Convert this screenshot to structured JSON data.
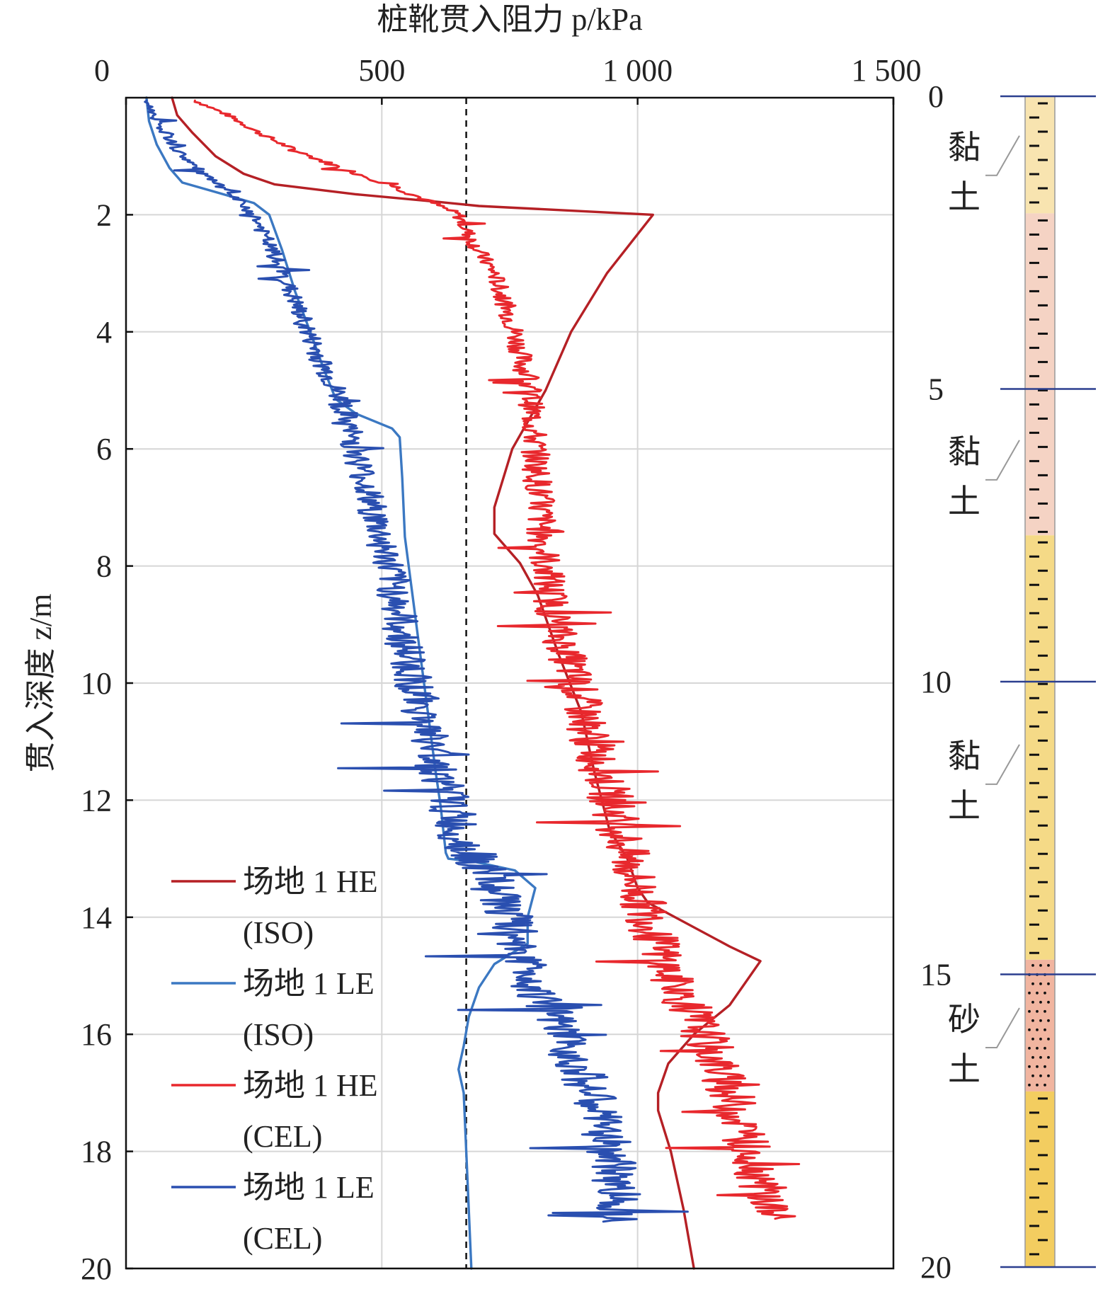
{
  "chart_data": {
    "type": "line",
    "xlabel": "桩靴贯入阻力 p/kPa",
    "ylabel": "贯入深度 z/m",
    "xlim": [
      0,
      1500
    ],
    "ylim": [
      0,
      20
    ],
    "x_axis_position": "top",
    "y_inverted": true,
    "grid": true,
    "x_ticks": [
      {
        "v": 0,
        "label": "0"
      },
      {
        "v": 500,
        "label": "500"
      },
      {
        "v": 1000,
        "label": "1 000"
      },
      {
        "v": 1500,
        "label": "1 500"
      }
    ],
    "y_ticks": [
      {
        "v": 2,
        "label": "2"
      },
      {
        "v": 4,
        "label": "4"
      },
      {
        "v": 6,
        "label": "6"
      },
      {
        "v": 8,
        "label": "8"
      },
      {
        "v": 10,
        "label": "10"
      },
      {
        "v": 12,
        "label": "12"
      },
      {
        "v": 14,
        "label": "14"
      },
      {
        "v": 16,
        "label": "16"
      },
      {
        "v": 18,
        "label": "18"
      },
      {
        "v": 20,
        "label": "20"
      }
    ],
    "y_origin_label": "20",
    "reference_line": {
      "x": 665,
      "style": "dashed",
      "color": "#111111"
    },
    "legend_position": "lower-left",
    "series": [
      {
        "name": "场地 1 HE",
        "name_line2": "(ISO)",
        "color": "#b52025",
        "style": "smooth",
        "points": [
          [
            90,
            0
          ],
          [
            100,
            0.3
          ],
          [
            130,
            0.6
          ],
          [
            175,
            1.0
          ],
          [
            230,
            1.3
          ],
          [
            290,
            1.48
          ],
          [
            450,
            1.65
          ],
          [
            610,
            1.78
          ],
          [
            690,
            1.85
          ],
          [
            1030,
            2.0
          ],
          [
            940,
            3.0
          ],
          [
            870,
            4.0
          ],
          [
            820,
            5.0
          ],
          [
            755,
            6.0
          ],
          [
            720,
            7.0
          ],
          [
            720,
            7.45
          ],
          [
            770,
            7.95
          ],
          [
            805,
            8.5
          ],
          [
            845,
            9.5
          ],
          [
            890,
            10.5
          ],
          [
            915,
            11.5
          ],
          [
            945,
            12.5
          ],
          [
            980,
            13.0
          ],
          [
            1000,
            13.5
          ],
          [
            1020,
            13.75
          ],
          [
            1180,
            14.5
          ],
          [
            1240,
            14.75
          ],
          [
            1180,
            15.5
          ],
          [
            1110,
            16.0
          ],
          [
            1060,
            16.5
          ],
          [
            1040,
            17.0
          ],
          [
            1040,
            17.3
          ],
          [
            1065,
            18.0
          ],
          [
            1090,
            19.0
          ],
          [
            1110,
            20.0
          ]
        ]
      },
      {
        "name": "场地 1 LE",
        "name_line2": "(ISO)",
        "color": "#3b78c2",
        "style": "smooth",
        "points": [
          [
            40,
            0
          ],
          [
            45,
            0.4
          ],
          [
            60,
            0.8
          ],
          [
            85,
            1.2
          ],
          [
            110,
            1.45
          ],
          [
            170,
            1.6
          ],
          [
            250,
            1.8
          ],
          [
            280,
            2.0
          ],
          [
            305,
            2.6
          ],
          [
            330,
            3.3
          ],
          [
            360,
            4.0
          ],
          [
            385,
            4.6
          ],
          [
            410,
            5.15
          ],
          [
            450,
            5.4
          ],
          [
            520,
            5.65
          ],
          [
            535,
            5.8
          ],
          [
            540,
            6.5
          ],
          [
            545,
            7.5
          ],
          [
            560,
            8.5
          ],
          [
            575,
            9.5
          ],
          [
            590,
            10.5
          ],
          [
            605,
            11.5
          ],
          [
            615,
            12.1
          ],
          [
            625,
            12.9
          ],
          [
            630,
            13.0
          ],
          [
            680,
            13.05
          ],
          [
            760,
            13.2
          ],
          [
            800,
            13.5
          ],
          [
            785,
            14.0
          ],
          [
            785,
            14.45
          ],
          [
            720,
            14.8
          ],
          [
            690,
            15.2
          ],
          [
            670,
            15.7
          ],
          [
            660,
            16.2
          ],
          [
            650,
            16.6
          ],
          [
            660,
            17.0
          ],
          [
            665,
            18.0
          ],
          [
            670,
            19.0
          ],
          [
            675,
            20.0
          ]
        ]
      },
      {
        "name": "场地 1 HE",
        "name_line2": "(CEL)",
        "color": "#e8282d",
        "style": "jagged",
        "points": [
          [
            135,
            0.05
          ],
          [
            200,
            0.3
          ],
          [
            260,
            0.6
          ],
          [
            330,
            0.9
          ],
          [
            420,
            1.2
          ],
          [
            520,
            1.5
          ],
          [
            600,
            1.8
          ],
          [
            650,
            2.0
          ],
          [
            680,
            2.5
          ],
          [
            720,
            3.0
          ],
          [
            760,
            4.0
          ],
          [
            790,
            5.0
          ],
          [
            800,
            6.0
          ],
          [
            810,
            7.0
          ],
          [
            820,
            8.0
          ],
          [
            840,
            9.0
          ],
          [
            880,
            10.0
          ],
          [
            910,
            11.0
          ],
          [
            950,
            12.0
          ],
          [
            980,
            13.0
          ],
          [
            1020,
            14.0
          ],
          [
            1060,
            15.0
          ],
          [
            1130,
            16.0
          ],
          [
            1180,
            17.0
          ],
          [
            1220,
            18.0
          ],
          [
            1260,
            19.0
          ],
          [
            1265,
            19.15
          ]
        ]
      },
      {
        "name": "场地 1 LE",
        "name_line2": "(CEL)",
        "color": "#2a4fb0",
        "style": "jagged",
        "points": [
          [
            40,
            0.05
          ],
          [
            60,
            0.4
          ],
          [
            100,
            0.9
          ],
          [
            150,
            1.3
          ],
          [
            210,
            1.7
          ],
          [
            250,
            2.0
          ],
          [
            290,
            2.7
          ],
          [
            330,
            3.5
          ],
          [
            370,
            4.3
          ],
          [
            420,
            5.2
          ],
          [
            455,
            6.2
          ],
          [
            490,
            7.3
          ],
          [
            520,
            8.2
          ],
          [
            540,
            9.2
          ],
          [
            570,
            10.2
          ],
          [
            600,
            11.2
          ],
          [
            630,
            12.0
          ],
          [
            650,
            12.6
          ],
          [
            700,
            13.2
          ],
          [
            740,
            13.8
          ],
          [
            770,
            14.5
          ],
          [
            800,
            15.2
          ],
          [
            850,
            16.0
          ],
          [
            900,
            16.8
          ],
          [
            940,
            17.8
          ],
          [
            960,
            18.6
          ],
          [
            970,
            19.2
          ]
        ]
      }
    ]
  },
  "legend": [
    {
      "line1": "场地 1 HE",
      "line2": "(ISO)"
    },
    {
      "line1": "场地 1 LE",
      "line2": "(ISO)"
    },
    {
      "line1": "场地 1 HE",
      "line2": "(CEL)"
    },
    {
      "line1": "场地 1 LE",
      "line2": "(CEL)"
    }
  ],
  "soil_column": {
    "depth_ticks": [
      {
        "v": 0,
        "label": "0"
      },
      {
        "v": 5,
        "label": "5"
      },
      {
        "v": 10,
        "label": "10"
      },
      {
        "v": 15,
        "label": "15"
      },
      {
        "v": 20,
        "label": "20"
      }
    ],
    "layers": [
      {
        "top": 0,
        "bottom": 2.0,
        "fill": "#f8e4b0",
        "pattern": "dash",
        "label": [
          "黏",
          "土"
        ],
        "label_depth": 1.4
      },
      {
        "top": 2.0,
        "bottom": 7.5,
        "fill": "#f5d3c4",
        "pattern": "dash",
        "label": [
          "黏",
          "土"
        ],
        "label_depth": 6.6
      },
      {
        "top": 7.5,
        "bottom": 14.75,
        "fill": "#f5da87",
        "pattern": "dash",
        "label": [
          "黏",
          "土"
        ],
        "label_depth": 11.8
      },
      {
        "top": 14.75,
        "bottom": 17.0,
        "fill": "#f1b5a0",
        "pattern": "dot",
        "label": [
          "砂",
          "土"
        ],
        "label_depth": 16.3
      },
      {
        "top": 17.0,
        "bottom": 20.0,
        "fill": "#f3cd60",
        "pattern": "dash",
        "label": [],
        "label_depth": 0
      }
    ],
    "line_color": "#2b3f8f"
  }
}
